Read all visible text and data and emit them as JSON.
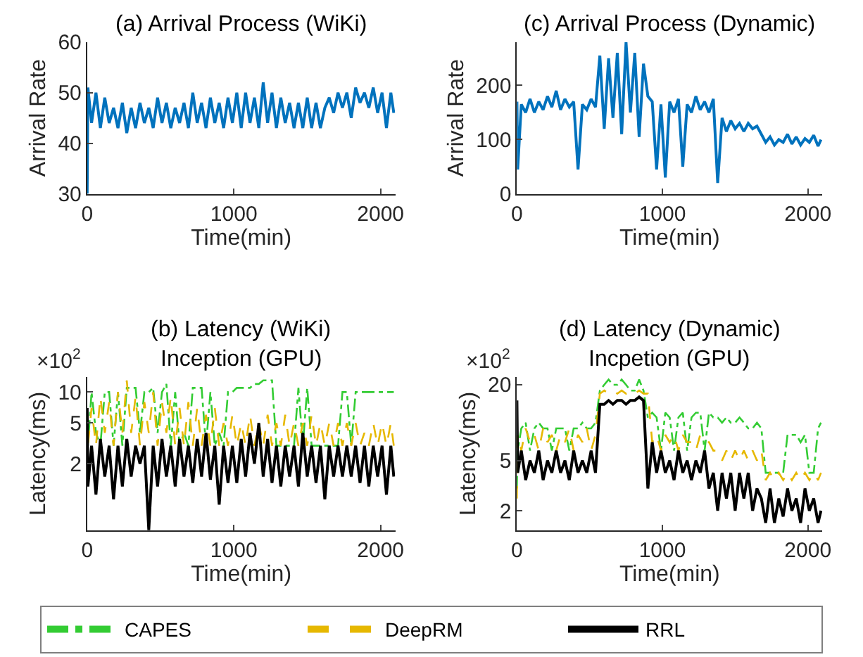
{
  "chart_data": [
    {
      "type": "line",
      "title": "(a) Arrival Process (WiKi)",
      "xlabel": "Time(min)",
      "ylabel": "Arrival Rate",
      "xlim": [
        0,
        2100
      ],
      "xticks": [
        0,
        1000,
        2000
      ],
      "ylim": [
        30,
        60
      ],
      "yticks": [
        30,
        40,
        50,
        60
      ],
      "legend": false,
      "x": [
        0,
        5,
        30,
        60,
        90,
        120,
        150,
        180,
        210,
        240,
        270,
        300,
        330,
        360,
        390,
        420,
        450,
        480,
        510,
        540,
        570,
        600,
        630,
        660,
        690,
        720,
        750,
        780,
        810,
        840,
        870,
        900,
        930,
        960,
        990,
        1020,
        1050,
        1080,
        1110,
        1140,
        1170,
        1200,
        1230,
        1260,
        1290,
        1320,
        1350,
        1380,
        1410,
        1440,
        1470,
        1500,
        1530,
        1560,
        1590,
        1620,
        1650,
        1680,
        1710,
        1740,
        1770,
        1800,
        1830,
        1860,
        1890,
        1920,
        1950,
        1980,
        2010,
        2040,
        2070,
        2090
      ],
      "series": [
        {
          "color": "#0072bd",
          "line_style": "solid",
          "values": [
            30,
            51,
            44,
            50,
            43,
            49,
            44,
            47,
            43,
            48,
            42,
            47,
            43,
            48,
            44,
            47,
            43,
            49,
            44,
            48,
            43,
            47,
            44,
            48,
            43,
            50,
            44,
            48,
            43,
            49,
            44,
            48,
            43,
            49,
            44,
            50,
            43,
            50,
            44,
            49,
            43,
            52,
            44,
            50,
            43,
            49,
            44,
            48,
            43,
            48,
            43,
            49,
            43,
            48,
            43,
            47,
            49,
            46,
            50,
            47,
            50,
            45,
            51,
            48,
            50,
            47,
            51,
            46,
            50,
            43,
            50,
            46
          ]
        }
      ]
    },
    {
      "type": "line",
      "title": "(c) Arrival Process (Dynamic)",
      "xlabel": "Time(min)",
      "ylabel": "Arrival Rate",
      "xlim": [
        0,
        2100
      ],
      "xticks": [
        0,
        1000,
        2000
      ],
      "ylim": [
        0,
        280
      ],
      "yticks": [
        0,
        100,
        200
      ],
      "legend": false,
      "x": [
        0,
        5,
        30,
        60,
        90,
        120,
        150,
        180,
        210,
        240,
        270,
        300,
        330,
        360,
        390,
        420,
        450,
        480,
        510,
        540,
        570,
        600,
        630,
        660,
        690,
        720,
        750,
        780,
        810,
        840,
        870,
        900,
        930,
        960,
        990,
        1020,
        1050,
        1080,
        1110,
        1140,
        1170,
        1200,
        1230,
        1260,
        1290,
        1320,
        1350,
        1380,
        1410,
        1440,
        1470,
        1500,
        1530,
        1560,
        1590,
        1620,
        1650,
        1680,
        1710,
        1740,
        1770,
        1800,
        1830,
        1860,
        1890,
        1920,
        1950,
        1980,
        2010,
        2040,
        2070,
        2090
      ],
      "series": [
        {
          "color": "#0072bd",
          "line_style": "solid",
          "values": [
            170,
            45,
            165,
            150,
            175,
            150,
            170,
            155,
            180,
            160,
            190,
            155,
            175,
            160,
            170,
            45,
            165,
            155,
            175,
            160,
            255,
            120,
            250,
            140,
            260,
            110,
            280,
            150,
            260,
            105,
            240,
            180,
            170,
            45,
            165,
            30,
            170,
            150,
            175,
            50,
            165,
            150,
            180,
            155,
            170,
            150,
            175,
            20,
            140,
            115,
            135,
            120,
            130,
            115,
            130,
            120,
            125,
            110,
            95,
            105,
            90,
            100,
            95,
            110,
            92,
            105,
            90,
            102,
            95,
            108,
            88,
            100
          ]
        }
      ]
    },
    {
      "type": "line",
      "title": "(b) Latency (WiKi)",
      "subtitle": "Inception (GPU)",
      "annotations": [
        "×10$^{2}$"
      ],
      "xlabel": "Time(min)",
      "ylabel": "Latency(ms)",
      "log": "y",
      "xlim": [
        0,
        2100
      ],
      "xticks": [
        0,
        1000,
        2000
      ],
      "ylim": [
        0.45,
        14
      ],
      "yticks": [
        2,
        5,
        10
      ],
      "legend": "bottom",
      "x": [
        0,
        5,
        30,
        60,
        90,
        120,
        150,
        180,
        210,
        240,
        270,
        300,
        330,
        360,
        390,
        420,
        450,
        480,
        510,
        540,
        570,
        600,
        630,
        660,
        690,
        720,
        750,
        780,
        810,
        840,
        870,
        900,
        930,
        960,
        990,
        1020,
        1050,
        1080,
        1110,
        1140,
        1170,
        1200,
        1230,
        1260,
        1290,
        1320,
        1350,
        1380,
        1410,
        1440,
        1470,
        1500,
        1530,
        1560,
        1590,
        1620,
        1650,
        1680,
        1710,
        1740,
        1770,
        1800,
        1830,
        1860,
        1890,
        1920,
        1950,
        1980,
        2010,
        2040,
        2070,
        2090
      ],
      "series": [
        {
          "name": "CAPES",
          "color": "#33cc33",
          "line_style": "dashdot",
          "values": [
            7,
            3,
            10,
            4,
            3,
            10,
            10,
            3,
            10,
            3,
            11,
            11,
            11,
            4,
            10,
            10,
            11,
            4,
            10,
            12,
            3,
            10,
            3,
            4,
            3,
            11,
            11,
            11,
            3,
            10,
            3,
            4,
            3,
            10,
            10,
            11,
            11,
            11,
            11,
            12,
            12,
            13,
            13,
            13,
            3,
            3,
            3,
            3,
            3,
            11,
            3,
            11,
            3,
            3,
            3,
            3,
            3,
            3,
            3,
            10,
            10,
            3,
            10,
            10,
            10,
            10,
            10,
            10,
            10,
            10,
            10,
            10
          ]
        },
        {
          "name": "DeepRM",
          "color": "#e6b800",
          "line_style": "dashed",
          "values": [
            5,
            3,
            7,
            3,
            9,
            4,
            8,
            3,
            10,
            4,
            13,
            4,
            9,
            3,
            8,
            4,
            10,
            3,
            8,
            4,
            9,
            3,
            7,
            3,
            8,
            3,
            7,
            3,
            6,
            3,
            7,
            3,
            5,
            3,
            6,
            3,
            5,
            3,
            6,
            3,
            5,
            3,
            6,
            3,
            5,
            3,
            6,
            3,
            5,
            3,
            5,
            3,
            6,
            3,
            5,
            3,
            5,
            3,
            5,
            3,
            5,
            3,
            5,
            3,
            4,
            3,
            5,
            3,
            5,
            3,
            5,
            3
          ]
        },
        {
          "name": "RRL",
          "color": "#000000",
          "line_style": "solid",
          "values": [
            7,
            1.2,
            3,
            1,
            3.5,
            1.5,
            3,
            0.9,
            3,
            1.2,
            3.5,
            1.5,
            3,
            2,
            3,
            0.45,
            3,
            1.2,
            3.5,
            1.5,
            3,
            1.2,
            3.5,
            1.5,
            3,
            1.3,
            3.5,
            1.5,
            4,
            1.4,
            3,
            0.8,
            3,
            1.3,
            3,
            1.3,
            3.5,
            1.5,
            4,
            2,
            5,
            1.5,
            3.5,
            1.3,
            3,
            1.2,
            3,
            1.5,
            3,
            1.2,
            4,
            1.5,
            3,
            1.3,
            3,
            0.9,
            3,
            1.5,
            3,
            1.5,
            3,
            1.5,
            3,
            1.3,
            3,
            1.2,
            3,
            1.5,
            3,
            1,
            3,
            1.5
          ]
        }
      ]
    },
    {
      "type": "line",
      "title": "(d) Latency (Dynamic)",
      "subtitle": "Incpetion (GPU)",
      "annotations": [
        "×10$^{2}$"
      ],
      "xlabel": "Time(min)",
      "ylabel": "Latency(ms)",
      "log": "y",
      "xlim": [
        0,
        2100
      ],
      "xticks": [
        0,
        1000,
        2000
      ],
      "ylim": [
        1.4,
        23
      ],
      "yticks": [
        2,
        5,
        20
      ],
      "legend": "bottom",
      "x": [
        0,
        5,
        30,
        60,
        90,
        120,
        150,
        180,
        210,
        240,
        270,
        300,
        330,
        360,
        390,
        420,
        450,
        480,
        510,
        540,
        570,
        600,
        630,
        660,
        690,
        720,
        750,
        780,
        810,
        840,
        870,
        900,
        930,
        960,
        990,
        1020,
        1050,
        1080,
        1110,
        1140,
        1170,
        1200,
        1230,
        1260,
        1290,
        1320,
        1350,
        1380,
        1410,
        1440,
        1470,
        1500,
        1530,
        1560,
        1590,
        1620,
        1650,
        1680,
        1710,
        1740,
        1770,
        1800,
        1830,
        1860,
        1890,
        1920,
        1950,
        1980,
        2010,
        2040,
        2070,
        2090
      ],
      "series": [
        {
          "name": "CAPES",
          "color": "#33cc33",
          "line_style": "dashdot",
          "values": [
            3,
            6,
            9,
            10,
            6,
            9,
            10,
            9,
            9,
            6,
            9,
            9,
            9,
            6,
            9,
            9,
            10,
            9,
            9,
            10,
            18,
            20,
            22,
            20,
            20,
            22,
            20,
            18,
            18,
            22,
            18,
            11,
            12,
            11,
            6,
            12,
            11,
            6,
            11,
            12,
            6,
            11,
            12,
            12,
            6,
            12,
            11,
            11,
            10,
            11,
            10,
            10,
            11,
            10,
            9,
            9,
            10,
            9,
            4,
            4,
            4,
            4,
            4,
            8,
            8,
            8,
            7,
            8,
            4,
            4,
            9,
            10
          ]
        },
        {
          "name": "DeepRM",
          "color": "#e6b800",
          "line_style": "dashed",
          "values": [
            2.5,
            8,
            6,
            9,
            7,
            8,
            6,
            9,
            7,
            8,
            6,
            8,
            7,
            9,
            6,
            8,
            7,
            9,
            6,
            8,
            17,
            18,
            17,
            18,
            17,
            18,
            17,
            18,
            17,
            18,
            17,
            17,
            7,
            8,
            6,
            8,
            7,
            8,
            6,
            8,
            7,
            7,
            6,
            8,
            7,
            7,
            6,
            6,
            5,
            6,
            5,
            6,
            5,
            6,
            5,
            6,
            5,
            6,
            3.5,
            4,
            3.5,
            4,
            3.5,
            4,
            3.5,
            4,
            3.5,
            4,
            3.5,
            4,
            3.5,
            4
          ]
        },
        {
          "name": "RRL",
          "color": "#000000",
          "line_style": "solid",
          "values": [
            15,
            4,
            6,
            3.5,
            5,
            4,
            6,
            3.5,
            5,
            4,
            6,
            4,
            5,
            3.5,
            6,
            4,
            5,
            4,
            6,
            4,
            14,
            14,
            15,
            14,
            15,
            15,
            14,
            15,
            15,
            16,
            15,
            3,
            7,
            4,
            6,
            4,
            5,
            3.5,
            6,
            4,
            5,
            3.5,
            5,
            4,
            6,
            3,
            4,
            2,
            4,
            2.5,
            4,
            2,
            4,
            2.5,
            4,
            2,
            3,
            2.5,
            1.6,
            3,
            1.6,
            2.5,
            1.8,
            3,
            2,
            2.5,
            1.6,
            3,
            2,
            2.5,
            1.6,
            2
          ]
        }
      ]
    }
  ]
}
